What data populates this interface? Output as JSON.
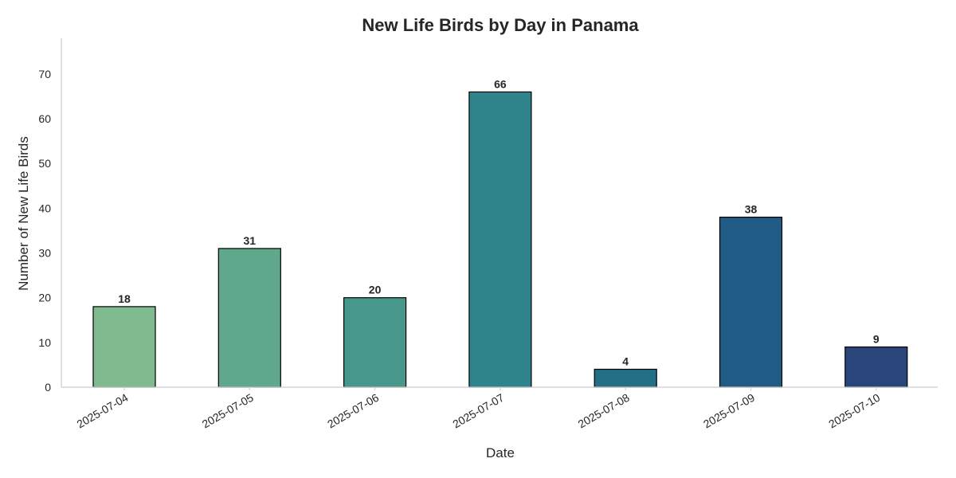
{
  "chart_data": {
    "type": "bar",
    "title": "New Life Birds by Day in Panama",
    "xlabel": "Date",
    "ylabel": "Number of New Life Birds",
    "categories": [
      "2025-07-04",
      "2025-07-05",
      "2025-07-06",
      "2025-07-07",
      "2025-07-08",
      "2025-07-09",
      "2025-07-10"
    ],
    "values": [
      18,
      31,
      20,
      66,
      4,
      38,
      9
    ],
    "data_labels": [
      "18",
      "31",
      "20",
      "66",
      "4",
      "38",
      "9"
    ],
    "ylim": [
      0,
      78
    ],
    "yticks": [
      0,
      10,
      20,
      30,
      40,
      50,
      60,
      70
    ],
    "ytick_labels": [
      "0",
      "10",
      "20",
      "30",
      "40",
      "50",
      "60",
      "70"
    ],
    "bar_colors": [
      "#7fbb8e",
      "#5fa88c",
      "#47978b",
      "#2f838a",
      "#236f85",
      "#1f5b84",
      "#2a4579"
    ],
    "grid": false,
    "legend": "none"
  }
}
